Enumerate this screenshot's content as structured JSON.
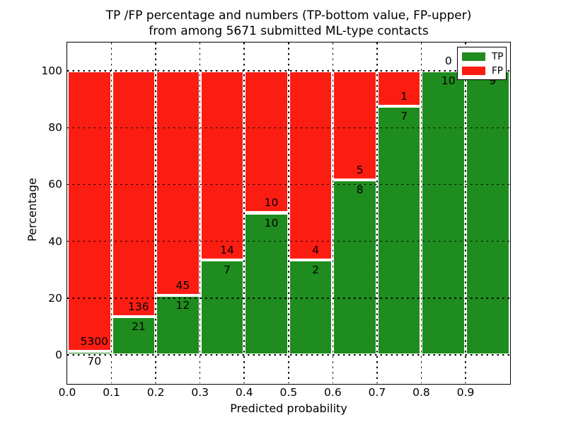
{
  "figure": {
    "title_line1": "TP /FP percentage and numbers (TP-bottom value, FP-upper)",
    "title_line2": "from among 5671 submitted ML-type contacts"
  },
  "chart_data": {
    "type": "bar",
    "variant": "stacked-percentage-histogram",
    "title": "TP /FP percentage and numbers (TP-bottom value, FP-upper) from among 5671 submitted ML-type contacts",
    "xlabel": "Predicted probability",
    "ylabel": "Percentage",
    "xlim": [
      0.0,
      1.0
    ],
    "ylim": [
      -10,
      110
    ],
    "xticks": [
      "0.0",
      "0.1",
      "0.2",
      "0.3",
      "0.4",
      "0.5",
      "0.6",
      "0.7",
      "0.8",
      "0.9"
    ],
    "yticks": [
      "0",
      "20",
      "40",
      "60",
      "80",
      "100"
    ],
    "grid": "black dotted, drawn above bars",
    "legend_position": "upper right",
    "total_contacts": 5671,
    "categories": [
      "0.0-0.1",
      "0.1-0.2",
      "0.2-0.3",
      "0.3-0.4",
      "0.4-0.5",
      "0.5-0.6",
      "0.6-0.7",
      "0.7-0.8",
      "0.8-0.9",
      "0.9-1.0"
    ],
    "series": [
      {
        "name": "TP",
        "color": "#1e8c1e",
        "values": [
          70,
          21,
          12,
          7,
          10,
          2,
          8,
          7,
          10,
          9
        ]
      },
      {
        "name": "FP",
        "color": "#fb1d12",
        "values": [
          5300,
          136,
          45,
          14,
          10,
          4,
          5,
          1,
          0,
          0
        ]
      }
    ],
    "tp_percent_of_bin": [
      1.3,
      13.4,
      21.1,
      33.3,
      50.0,
      33.3,
      61.5,
      87.5,
      100.0,
      100.0
    ],
    "bar_value_labels": "FP count printed just above the TP/FP boundary, TP count just below it"
  },
  "legend": {
    "items": [
      {
        "label": "TP",
        "color": "#1e8c1e"
      },
      {
        "label": "FP",
        "color": "#fb1d12"
      }
    ]
  },
  "colors": {
    "tp_green": "#1e8c1e",
    "fp_red": "#fb1d12",
    "background": "#ffffff",
    "text": "#000000",
    "bar_edge": "#ffffff",
    "axes_border": "#000000"
  }
}
